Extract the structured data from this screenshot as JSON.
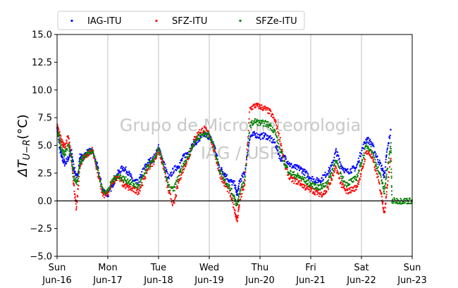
{
  "chart_data": {
    "type": "scatter",
    "ylabel": "ΔT_{U−R}(°C)",
    "ylim": [
      -5.0,
      15.0
    ],
    "yticks": [
      -5.0,
      -2.5,
      0.0,
      2.5,
      5.0,
      7.5,
      10.0,
      12.5,
      15.0
    ],
    "ytick_labels": [
      "−5.0",
      "−2.5",
      "0.0",
      "2.5",
      "5.0",
      "7.5",
      "10.0",
      "12.5",
      "15.0"
    ],
    "xlim": [
      0,
      7
    ],
    "xticks": [
      0,
      1,
      2,
      3,
      4,
      5,
      6,
      7
    ],
    "xtick_labels": [
      [
        "Sun",
        "Jun-16"
      ],
      [
        "Mon",
        "Jun-17"
      ],
      [
        "Tue",
        "Jun-18"
      ],
      [
        "Wed",
        "Jun-19"
      ],
      [
        "Thu",
        "Jun-20"
      ],
      [
        "Fri",
        "Jun-21"
      ],
      [
        "Sat",
        "Jun-22"
      ],
      [
        "Sun",
        "Jun-23"
      ]
    ],
    "grid": "vertical",
    "legend_position": "top",
    "watermark": [
      "Grupo de Micrometeorologia",
      "IAG / USP"
    ],
    "reference_line_y": 0.0,
    "series": [
      {
        "name": "IAG-ITU",
        "color": "#0000ff",
        "points": [
          [
            0.0,
            6.8
          ],
          [
            0.05,
            4.8
          ],
          [
            0.1,
            3.8
          ],
          [
            0.15,
            3.4
          ],
          [
            0.22,
            3.8
          ],
          [
            0.28,
            4.6
          ],
          [
            0.33,
            3.0
          ],
          [
            0.4,
            2.0
          ],
          [
            0.45,
            4.0
          ],
          [
            0.5,
            3.9
          ],
          [
            0.6,
            4.4
          ],
          [
            0.7,
            4.5
          ],
          [
            0.8,
            3.0
          ],
          [
            0.9,
            1.0
          ],
          [
            1.0,
            0.5
          ],
          [
            1.1,
            1.5
          ],
          [
            1.2,
            2.5
          ],
          [
            1.3,
            3.0
          ],
          [
            1.4,
            2.6
          ],
          [
            1.5,
            1.8
          ],
          [
            1.6,
            1.6
          ],
          [
            1.7,
            2.8
          ],
          [
            1.8,
            3.5
          ],
          [
            1.9,
            3.8
          ],
          [
            2.0,
            4.8
          ],
          [
            2.1,
            3.5
          ],
          [
            2.2,
            2.0
          ],
          [
            2.3,
            2.8
          ],
          [
            2.4,
            3.2
          ],
          [
            2.5,
            4.0
          ],
          [
            2.6,
            4.5
          ],
          [
            2.7,
            5.2
          ],
          [
            2.8,
            5.5
          ],
          [
            2.9,
            6.0
          ],
          [
            3.0,
            5.8
          ],
          [
            3.1,
            5.0
          ],
          [
            3.2,
            3.0
          ],
          [
            3.3,
            2.5
          ],
          [
            3.4,
            1.8
          ],
          [
            3.5,
            1.5
          ],
          [
            3.55,
            0.5
          ],
          [
            3.6,
            1.8
          ],
          [
            3.7,
            2.5
          ],
          [
            3.8,
            5.8
          ],
          [
            3.9,
            6.0
          ],
          [
            4.0,
            5.8
          ],
          [
            4.1,
            5.9
          ],
          [
            4.2,
            5.6
          ],
          [
            4.3,
            5.2
          ],
          [
            4.4,
            3.8
          ],
          [
            4.5,
            3.9
          ],
          [
            4.6,
            3.2
          ],
          [
            4.7,
            3.0
          ],
          [
            4.8,
            2.9
          ],
          [
            4.9,
            2.5
          ],
          [
            5.0,
            2.1
          ],
          [
            5.1,
            1.8
          ],
          [
            5.2,
            1.9
          ],
          [
            5.3,
            2.4
          ],
          [
            5.4,
            3.0
          ],
          [
            5.5,
            4.5
          ],
          [
            5.6,
            3.2
          ],
          [
            5.7,
            2.6
          ],
          [
            5.8,
            2.8
          ],
          [
            5.9,
            3.0
          ],
          [
            6.0,
            4.5
          ],
          [
            6.1,
            5.6
          ],
          [
            6.2,
            5.2
          ],
          [
            6.3,
            4.0
          ],
          [
            6.4,
            3.0
          ],
          [
            6.45,
            2.2
          ],
          [
            6.5,
            4.3
          ],
          [
            6.58,
            6.4
          ]
        ]
      },
      {
        "name": "SFZ-ITU",
        "color": "#ff0000",
        "points": [
          [
            0.0,
            6.8
          ],
          [
            0.05,
            6.0
          ],
          [
            0.1,
            5.2
          ],
          [
            0.15,
            4.9
          ],
          [
            0.22,
            5.8
          ],
          [
            0.28,
            4.0
          ],
          [
            0.33,
            1.5
          ],
          [
            0.38,
            -0.8
          ],
          [
            0.45,
            3.0
          ],
          [
            0.5,
            3.8
          ],
          [
            0.6,
            4.2
          ],
          [
            0.7,
            4.6
          ],
          [
            0.8,
            2.5
          ],
          [
            0.9,
            0.5
          ],
          [
            1.0,
            0.6
          ],
          [
            1.1,
            1.8
          ],
          [
            1.2,
            2.2
          ],
          [
            1.3,
            1.5
          ],
          [
            1.4,
            1.2
          ],
          [
            1.5,
            1.0
          ],
          [
            1.6,
            0.8
          ],
          [
            1.7,
            1.8
          ],
          [
            1.8,
            3.0
          ],
          [
            1.9,
            3.5
          ],
          [
            2.0,
            4.6
          ],
          [
            2.1,
            3.0
          ],
          [
            2.2,
            0.8
          ],
          [
            2.3,
            -0.4
          ],
          [
            2.4,
            1.8
          ],
          [
            2.5,
            3.0
          ],
          [
            2.6,
            4.0
          ],
          [
            2.7,
            5.5
          ],
          [
            2.8,
            6.2
          ],
          [
            2.9,
            6.5
          ],
          [
            3.0,
            6.0
          ],
          [
            3.1,
            4.5
          ],
          [
            3.2,
            2.5
          ],
          [
            3.3,
            1.5
          ],
          [
            3.4,
            0.8
          ],
          [
            3.5,
            -0.8
          ],
          [
            3.55,
            -1.8
          ],
          [
            3.6,
            0.0
          ],
          [
            3.7,
            1.5
          ],
          [
            3.8,
            8.3
          ],
          [
            3.9,
            8.6
          ],
          [
            4.0,
            8.5
          ],
          [
            4.1,
            8.3
          ],
          [
            4.2,
            8.0
          ],
          [
            4.3,
            7.2
          ],
          [
            4.4,
            5.5
          ],
          [
            4.5,
            3.0
          ],
          [
            4.6,
            2.0
          ],
          [
            4.7,
            1.8
          ],
          [
            4.8,
            1.6
          ],
          [
            4.9,
            1.2
          ],
          [
            5.0,
            1.0
          ],
          [
            5.1,
            0.8
          ],
          [
            5.2,
            0.6
          ],
          [
            5.3,
            0.8
          ],
          [
            5.4,
            1.8
          ],
          [
            5.5,
            3.0
          ],
          [
            5.6,
            1.5
          ],
          [
            5.7,
            0.8
          ],
          [
            5.8,
            1.0
          ],
          [
            5.9,
            1.2
          ],
          [
            6.0,
            2.5
          ],
          [
            6.1,
            4.5
          ],
          [
            6.2,
            4.0
          ],
          [
            6.3,
            2.5
          ],
          [
            6.4,
            0.5
          ],
          [
            6.45,
            -1.2
          ],
          [
            6.5,
            1.0
          ],
          [
            6.58,
            3.8
          ]
        ]
      },
      {
        "name": "SFZe-ITU",
        "color": "#008000",
        "points": [
          [
            0.0,
            6.5
          ],
          [
            0.05,
            5.5
          ],
          [
            0.1,
            4.5
          ],
          [
            0.15,
            4.2
          ],
          [
            0.22,
            5.0
          ],
          [
            0.28,
            3.8
          ],
          [
            0.33,
            2.2
          ],
          [
            0.4,
            1.5
          ],
          [
            0.45,
            3.5
          ],
          [
            0.5,
            3.8
          ],
          [
            0.6,
            4.3
          ],
          [
            0.7,
            4.6
          ],
          [
            0.8,
            2.8
          ],
          [
            0.9,
            0.9
          ],
          [
            1.0,
            0.9
          ],
          [
            1.1,
            1.9
          ],
          [
            1.2,
            2.3
          ],
          [
            1.3,
            2.0
          ],
          [
            1.4,
            1.8
          ],
          [
            1.5,
            1.5
          ],
          [
            1.6,
            1.3
          ],
          [
            1.7,
            2.2
          ],
          [
            1.8,
            3.2
          ],
          [
            1.9,
            3.6
          ],
          [
            2.0,
            4.7
          ],
          [
            2.1,
            3.2
          ],
          [
            2.2,
            1.2
          ],
          [
            2.3,
            1.0
          ],
          [
            2.4,
            2.3
          ],
          [
            2.5,
            3.3
          ],
          [
            2.6,
            4.2
          ],
          [
            2.7,
            5.3
          ],
          [
            2.8,
            5.8
          ],
          [
            2.9,
            6.1
          ],
          [
            3.0,
            5.9
          ],
          [
            3.1,
            4.8
          ],
          [
            3.2,
            2.8
          ],
          [
            3.3,
            2.0
          ],
          [
            3.4,
            1.2
          ],
          [
            3.5,
            0.3
          ],
          [
            3.55,
            -0.5
          ],
          [
            3.6,
            0.8
          ],
          [
            3.7,
            2.0
          ],
          [
            3.8,
            6.8
          ],
          [
            3.9,
            7.2
          ],
          [
            4.0,
            7.0
          ],
          [
            4.1,
            7.0
          ],
          [
            4.2,
            6.8
          ],
          [
            4.3,
            6.2
          ],
          [
            4.4,
            4.5
          ],
          [
            4.5,
            3.2
          ],
          [
            4.6,
            2.5
          ],
          [
            4.7,
            2.3
          ],
          [
            4.8,
            2.1
          ],
          [
            4.9,
            1.8
          ],
          [
            5.0,
            1.5
          ],
          [
            5.1,
            1.3
          ],
          [
            5.2,
            1.2
          ],
          [
            5.3,
            1.5
          ],
          [
            5.4,
            2.4
          ],
          [
            5.5,
            3.8
          ],
          [
            5.6,
            2.2
          ],
          [
            5.7,
            1.5
          ],
          [
            5.8,
            1.8
          ],
          [
            5.9,
            2.0
          ],
          [
            6.0,
            3.5
          ],
          [
            6.1,
            5.0
          ],
          [
            6.2,
            4.6
          ],
          [
            6.3,
            3.2
          ],
          [
            6.4,
            1.8
          ],
          [
            6.45,
            0.8
          ],
          [
            6.5,
            2.5
          ],
          [
            6.58,
            5.2
          ],
          [
            6.6,
            0.0
          ],
          [
            6.7,
            0.0
          ],
          [
            6.8,
            0.0
          ],
          [
            6.9,
            0.0
          ],
          [
            7.0,
            0.0
          ]
        ]
      }
    ]
  }
}
